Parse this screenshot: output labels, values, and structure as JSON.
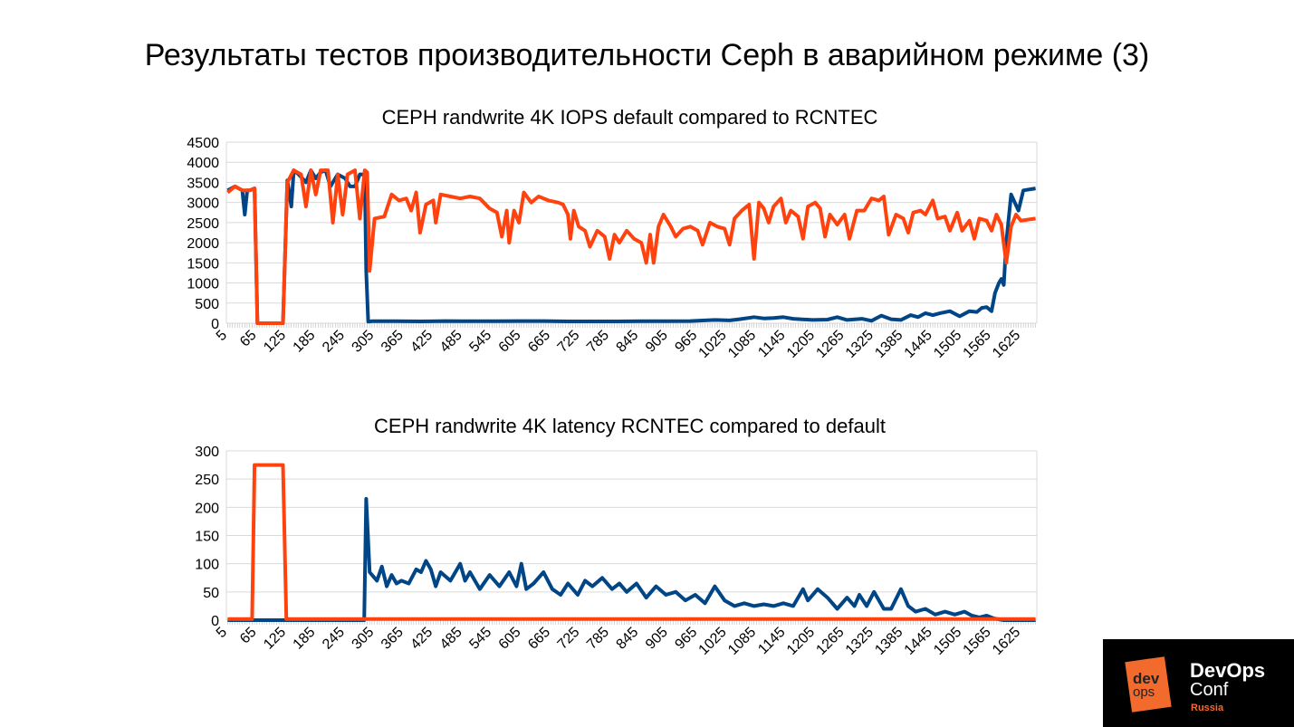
{
  "slide": {
    "title": "Результаты тестов производительности Ceph в аварийном режиме (3)"
  },
  "logo": {
    "mark_top": "dev",
    "mark_bottom": "ops",
    "line1": "DevOps",
    "line2": "Conf",
    "line3": "Russia"
  },
  "colors": {
    "blue": "#004586",
    "orange": "#ff420e",
    "grid": "#d9d9d9"
  },
  "chart_data": [
    {
      "type": "line",
      "title": "CEPH randwrite 4K IOPS default compared to RCNTEC",
      "xlabel": "",
      "ylabel": "",
      "xlim": [
        2.5,
        1657.5
      ],
      "ylim": [
        0,
        4500
      ],
      "yticks": [
        0,
        500,
        1000,
        1500,
        2000,
        2500,
        3000,
        3500,
        4000,
        4500
      ],
      "xticks": [
        5,
        65,
        125,
        185,
        245,
        305,
        365,
        425,
        485,
        545,
        605,
        665,
        725,
        785,
        845,
        905,
        965,
        1025,
        1085,
        1145,
        1205,
        1265,
        1325,
        1385,
        1445,
        1505,
        1565,
        1625
      ],
      "grid": true,
      "legend": "none",
      "series": [
        {
          "color": "#004586",
          "x": [
            5,
            20,
            35,
            40,
            45,
            50,
            60,
            66,
            118,
            127,
            135,
            140,
            150,
            165,
            175,
            185,
            195,
            205,
            215,
            230,
            245,
            255,
            265,
            275,
            285,
            288,
            292,
            300,
            350,
            400,
            450,
            500,
            550,
            600,
            650,
            700,
            750,
            800,
            850,
            900,
            950,
            1000,
            1030,
            1050,
            1080,
            1100,
            1120,
            1140,
            1160,
            1200,
            1230,
            1250,
            1270,
            1300,
            1320,
            1340,
            1360,
            1380,
            1400,
            1415,
            1430,
            1445,
            1460,
            1480,
            1500,
            1520,
            1535,
            1545,
            1555,
            1565,
            1572,
            1580,
            1585,
            1590,
            1595,
            1605,
            1620,
            1630,
            1655
          ],
          "y": [
            3300,
            3400,
            3300,
            2700,
            3300,
            3300,
            3350,
            0,
            0,
            3550,
            2900,
            3800,
            3700,
            3500,
            3800,
            3600,
            3750,
            3800,
            3400,
            3700,
            3600,
            3400,
            3400,
            3700,
            3700,
            1300,
            40,
            50,
            50,
            45,
            55,
            50,
            50,
            55,
            55,
            45,
            45,
            45,
            50,
            50,
            55,
            80,
            70,
            100,
            150,
            120,
            130,
            150,
            110,
            80,
            90,
            150,
            80,
            110,
            60,
            190,
            100,
            80,
            200,
            150,
            250,
            200,
            250,
            300,
            170,
            300,
            280,
            380,
            400,
            300,
            750,
            1000,
            1100,
            950,
            2000,
            3200,
            2800,
            3300,
            3350
          ]
        },
        {
          "color": "#ff420e",
          "x": [
            5,
            20,
            35,
            50,
            60,
            66,
            118,
            127,
            140,
            155,
            165,
            175,
            185,
            195,
            210,
            220,
            230,
            240,
            250,
            265,
            275,
            285,
            290,
            295,
            305,
            325,
            340,
            355,
            370,
            380,
            390,
            398,
            410,
            425,
            430,
            440,
            460,
            480,
            500,
            520,
            540,
            555,
            565,
            575,
            580,
            590,
            600,
            610,
            625,
            640,
            660,
            680,
            690,
            700,
            705,
            712,
            722,
            735,
            745,
            760,
            775,
            785,
            795,
            805,
            820,
            835,
            850,
            860,
            868,
            875,
            885,
            895,
            910,
            920,
            935,
            950,
            965,
            975,
            990,
            1005,
            1020,
            1030,
            1040,
            1055,
            1070,
            1080,
            1090,
            1100,
            1110,
            1120,
            1135,
            1145,
            1155,
            1170,
            1180,
            1190,
            1205,
            1215,
            1225,
            1235,
            1250,
            1265,
            1275,
            1290,
            1305,
            1320,
            1335,
            1345,
            1355,
            1370,
            1385,
            1395,
            1405,
            1420,
            1430,
            1445,
            1455,
            1470,
            1480,
            1495,
            1505,
            1520,
            1530,
            1540,
            1555,
            1565,
            1575,
            1585,
            1595,
            1605,
            1615,
            1625,
            1655
          ],
          "y": [
            3250,
            3400,
            3300,
            3300,
            3350,
            0,
            0,
            3500,
            3800,
            3700,
            2900,
            3800,
            3200,
            3800,
            3800,
            2500,
            3700,
            2700,
            3700,
            3800,
            2600,
            3800,
            3750,
            1300,
            2600,
            2650,
            3200,
            3050,
            3100,
            2800,
            3250,
            2250,
            2950,
            3050,
            2500,
            3200,
            3150,
            3100,
            3150,
            3100,
            2850,
            2750,
            2150,
            2800,
            2000,
            2800,
            2500,
            3250,
            3000,
            3150,
            3050,
            3000,
            2950,
            2700,
            2100,
            2800,
            2400,
            2300,
            1900,
            2300,
            2150,
            1600,
            2200,
            2000,
            2300,
            2100,
            2000,
            1500,
            2200,
            1500,
            2400,
            2700,
            2400,
            2150,
            2350,
            2400,
            2300,
            1950,
            2500,
            2400,
            2350,
            1950,
            2600,
            2800,
            2950,
            1600,
            3000,
            2850,
            2500,
            2900,
            3100,
            2500,
            2800,
            2650,
            2100,
            2900,
            3000,
            2850,
            2150,
            2700,
            2450,
            2700,
            2100,
            2800,
            2800,
            3100,
            3050,
            3150,
            2200,
            2700,
            2600,
            2250,
            2750,
            2800,
            2700,
            3050,
            2600,
            2650,
            2300,
            2750,
            2300,
            2550,
            2100,
            2600,
            2550,
            2300,
            2700,
            2450,
            1500,
            2400,
            2700,
            2550,
            2600
          ]
        }
      ]
    },
    {
      "type": "line",
      "title": "CEPH randwrite 4K latency RCNTEC compared to default",
      "xlabel": "",
      "ylabel": "",
      "xlim": [
        2.5,
        1657.5
      ],
      "ylim": [
        0,
        300
      ],
      "yticks": [
        0,
        50,
        100,
        150,
        200,
        250,
        300
      ],
      "xticks": [
        5,
        65,
        125,
        185,
        245,
        305,
        365,
        425,
        485,
        545,
        605,
        665,
        725,
        785,
        845,
        905,
        965,
        1025,
        1085,
        1145,
        1205,
        1265,
        1325,
        1385,
        1445,
        1505,
        1565,
        1625
      ],
      "grid": true,
      "legend": "none",
      "series": [
        {
          "color": "#004586",
          "x": [
            5,
            284,
            288,
            295,
            310,
            320,
            330,
            340,
            350,
            360,
            375,
            390,
            400,
            410,
            420,
            430,
            440,
            460,
            480,
            490,
            500,
            520,
            540,
            560,
            580,
            595,
            605,
            615,
            630,
            650,
            668,
            685,
            700,
            720,
            735,
            750,
            770,
            790,
            805,
            820,
            840,
            860,
            880,
            900,
            920,
            940,
            960,
            980,
            1000,
            1020,
            1040,
            1060,
            1080,
            1100,
            1120,
            1140,
            1160,
            1180,
            1190,
            1210,
            1230,
            1250,
            1270,
            1285,
            1295,
            1310,
            1325,
            1345,
            1360,
            1380,
            1395,
            1410,
            1430,
            1450,
            1470,
            1490,
            1510,
            1525,
            1540,
            1555,
            1570,
            1590,
            1655
          ],
          "y": [
            0,
            0,
            215,
            85,
            70,
            95,
            60,
            80,
            65,
            70,
            65,
            90,
            85,
            105,
            90,
            60,
            85,
            70,
            100,
            70,
            85,
            55,
            80,
            60,
            85,
            60,
            100,
            55,
            65,
            85,
            55,
            45,
            65,
            45,
            70,
            60,
            75,
            55,
            65,
            50,
            65,
            40,
            60,
            45,
            50,
            35,
            45,
            30,
            60,
            35,
            25,
            30,
            25,
            28,
            25,
            30,
            25,
            55,
            35,
            55,
            40,
            20,
            40,
            25,
            45,
            25,
            50,
            20,
            20,
            55,
            25,
            15,
            20,
            10,
            15,
            10,
            15,
            8,
            5,
            8,
            3,
            0,
            0
          ]
        },
        {
          "color": "#ff420e",
          "x": [
            5,
            55,
            60,
            65,
            115,
            118,
            125,
            1655
          ],
          "y": [
            2,
            2,
            275,
            275,
            275,
            275,
            2,
            2
          ]
        }
      ]
    }
  ]
}
